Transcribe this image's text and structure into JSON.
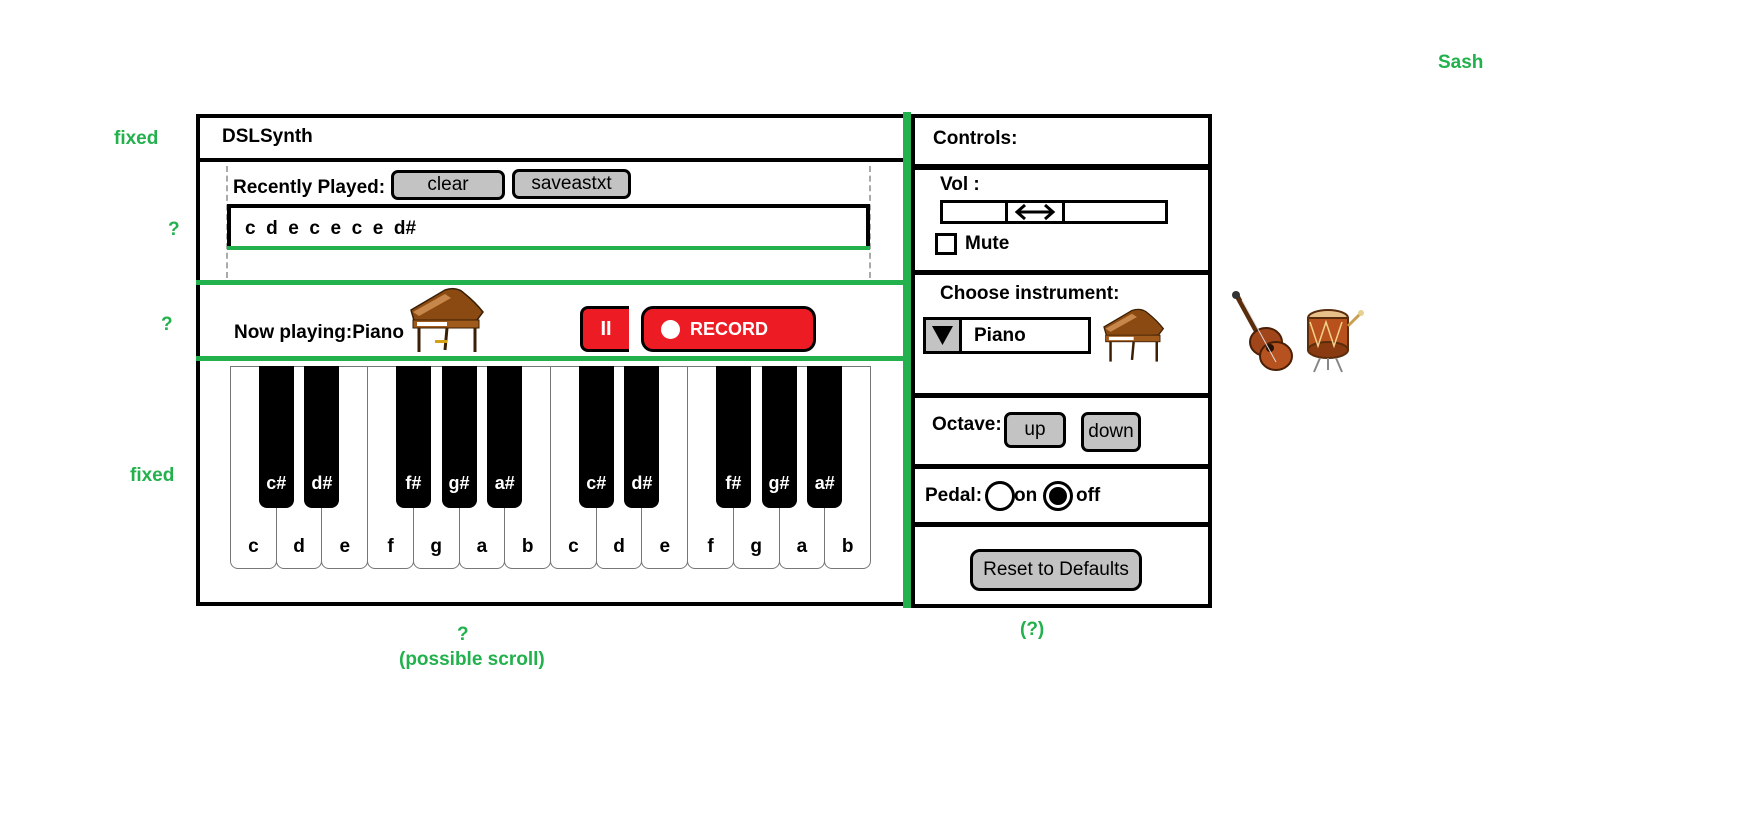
{
  "annotations": {
    "sash": "Sash",
    "fixed_top": "fixed",
    "q_recent_outer": "?",
    "q_recent_inner": "?",
    "q_playing": "?",
    "fixed_keys": "fixed",
    "q_bottom": "?",
    "possible_scroll": "(possible scroll)",
    "q_controls": "(?)"
  },
  "app": {
    "title": "DSLSynth"
  },
  "recent": {
    "label": "Recently Played:",
    "clear_label": "clear",
    "save_label": "saveastxt",
    "notes": "c  d  e  c  e  c  e  d#"
  },
  "playing": {
    "label": "Now playing:Piano",
    "instrument_icon": "grand-piano-icon",
    "pause_label": "II",
    "record_label": "RECORD"
  },
  "keyboard": {
    "white_keys": [
      "c",
      "d",
      "e",
      "f",
      "g",
      "a",
      "b",
      "c",
      "d",
      "e",
      "f",
      "g",
      "a",
      "b"
    ],
    "black_keys": [
      "c#",
      "d#",
      "f#",
      "g#",
      "a#",
      "c#",
      "d#",
      "f#",
      "g#",
      "a#"
    ]
  },
  "controls": {
    "title": "Controls:",
    "vol_label": "Vol :",
    "vol_level": 0.38,
    "mute_label": "Mute",
    "mute_checked": false,
    "instrument_label": "Choose instrument:",
    "instrument_value": "Piano",
    "octave_label": "Octave:",
    "octave_up": "up",
    "octave_down": "down",
    "pedal_label": "Pedal:",
    "pedal_on": "on",
    "pedal_off": "off",
    "pedal_selected": "off",
    "reset_label": "Reset to Defaults"
  },
  "extra_instruments": [
    "guitar-icon",
    "drum-icon"
  ],
  "colors": {
    "annotation": "#22b14c",
    "record": "#ed1c24",
    "button_gray": "#c3c3c3"
  }
}
